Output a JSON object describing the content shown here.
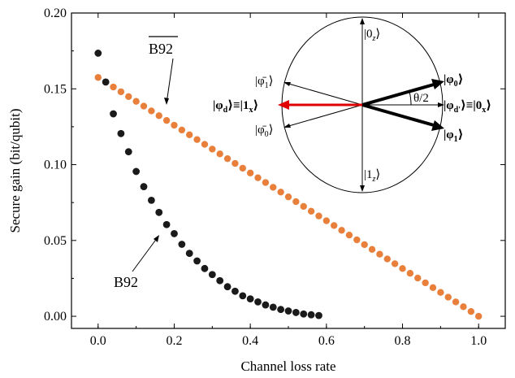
{
  "chart_data": {
    "type": "scatter",
    "xlabel": "Channel loss rate",
    "ylabel": "Secure gain (bit/qubit)",
    "xlim": [
      -0.07,
      1.07
    ],
    "ylim": [
      -0.008,
      0.2
    ],
    "x_ticks": [
      "0.0",
      "0.2",
      "0.4",
      "0.6",
      "0.8",
      "1.0"
    ],
    "y_ticks": [
      "0.00",
      "0.05",
      "0.10",
      "0.15",
      "0.20"
    ],
    "grid": false,
    "series": [
      {
        "name": "B92",
        "color": "#1a1a1a",
        "x": [
          0.0,
          0.02,
          0.04,
          0.06,
          0.08,
          0.1,
          0.12,
          0.14,
          0.16,
          0.18,
          0.2,
          0.22,
          0.24,
          0.26,
          0.28,
          0.3,
          0.32,
          0.34,
          0.36,
          0.38,
          0.4,
          0.42,
          0.44,
          0.46,
          0.48,
          0.5,
          0.52,
          0.54,
          0.56,
          0.58
        ],
        "y": [
          0.1735,
          0.1545,
          0.1335,
          0.1205,
          0.1085,
          0.0955,
          0.0855,
          0.0765,
          0.0685,
          0.0605,
          0.0545,
          0.0475,
          0.0415,
          0.0365,
          0.0315,
          0.0275,
          0.0235,
          0.0195,
          0.0165,
          0.0135,
          0.0115,
          0.0095,
          0.0075,
          0.006,
          0.0045,
          0.0035,
          0.0025,
          0.0015,
          0.001,
          0.0005
        ]
      },
      {
        "name": "B92 (overline)",
        "color": "#e8803c",
        "x_start": 0.0,
        "x_end": 1.0,
        "step": 0.02,
        "y_at_start": 0.1575,
        "y_at_end": 0.0
      }
    ],
    "annotations": {
      "b92_label": "B92",
      "b92bar_label": "B92",
      "theta_label": "θ/2"
    },
    "inset_kets": {
      "zero_z": "|0",
      "zero_z_sub": "z",
      "one_z": "|1",
      "one_z_sub": "z",
      "phibar1": "|φ̄",
      "phibar1_sub": "1",
      "phibar0": "|φ̄",
      "phibar0_sub": "0",
      "phi0": "|φ",
      "phi0_sub": "0",
      "phi1": "|φ",
      "phi1_sub": "1",
      "phid": "|φ",
      "phid_sub": "d",
      "equiv_left": "≡|1",
      "equiv_left_sub": "x",
      "phid_prime": "|φ",
      "phid_prime_sub": "d'",
      "equiv_right": "≡|0",
      "equiv_right_sub": "x",
      "close": "⟩"
    }
  }
}
